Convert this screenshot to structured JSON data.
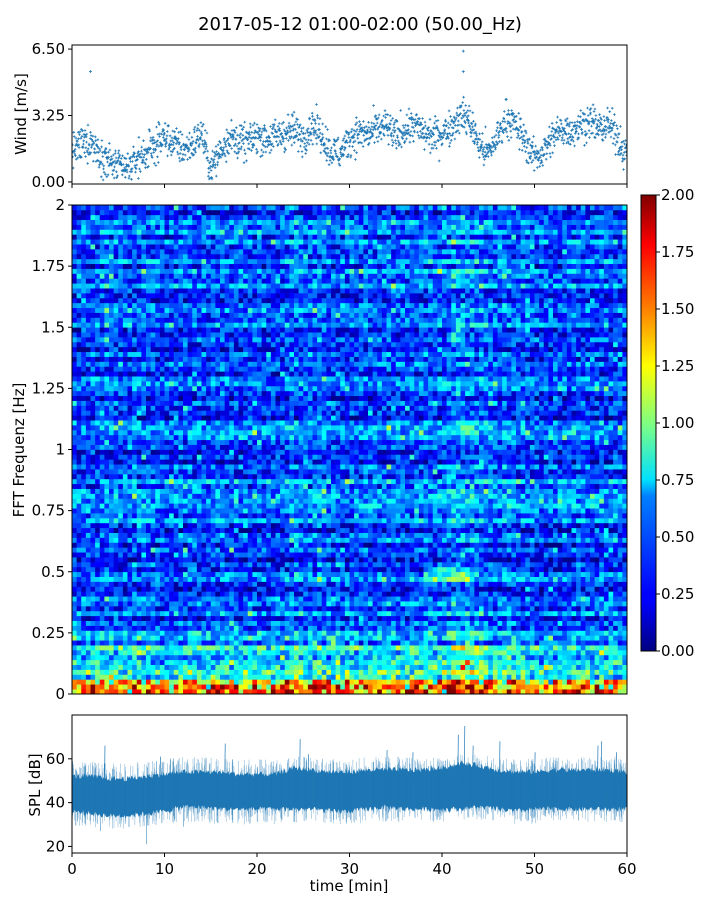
{
  "page": {
    "title": "2017-05-12 01:00-02:00 (50.00_Hz)"
  },
  "chart_data": [
    {
      "id": "wind",
      "type": "scatter",
      "title": "",
      "xlabel": "",
      "ylabel": "Wind [m/s]",
      "xlim": [
        0,
        60
      ],
      "ylim": [
        -0.1,
        6.7
      ],
      "yticks": [
        0.0,
        3.25,
        6.5
      ],
      "ytick_labels": [
        "0.00",
        "3.25",
        "6.50"
      ],
      "color": "#1f77b4",
      "marker": "+",
      "series": [
        {
          "x": [
            0,
            1,
            2,
            3,
            4,
            5,
            6,
            7,
            8,
            9,
            10,
            11,
            12,
            13,
            14,
            15,
            16,
            17,
            18,
            19,
            20,
            21,
            22,
            23,
            24,
            25,
            26,
            27,
            28,
            29,
            30,
            31,
            32,
            33,
            34,
            35,
            36,
            37,
            38,
            39,
            40,
            41,
            42,
            43,
            44,
            45,
            46,
            47,
            48,
            49,
            50,
            51,
            52,
            53,
            54,
            55,
            56,
            57,
            58,
            59,
            60
          ],
          "y": [
            1.5,
            1.8,
            2.0,
            1.4,
            1.0,
            0.7,
            0.6,
            1.1,
            1.4,
            1.8,
            2.2,
            1.9,
            1.6,
            1.8,
            2.4,
            0.6,
            1.5,
            2.2,
            2.0,
            1.9,
            2.3,
            2.1,
            2.2,
            2.4,
            2.5,
            2.2,
            2.8,
            2.3,
            1.5,
            1.4,
            2.1,
            2.4,
            2.3,
            2.6,
            2.7,
            2.2,
            2.6,
            2.8,
            2.4,
            2.2,
            2.4,
            2.7,
            3.3,
            3.0,
            1.8,
            1.4,
            2.2,
            3.2,
            2.7,
            2.0,
            1.2,
            1.5,
            2.2,
            2.6,
            2.5,
            2.8,
            3.0,
            2.6,
            2.8,
            2.2,
            1.2
          ]
        }
      ],
      "outliers": [
        {
          "x": 2.0,
          "y": 5.4
        },
        {
          "x": 42.3,
          "y": 6.4
        },
        {
          "x": 42.3,
          "y": 5.4
        }
      ]
    },
    {
      "id": "spectrogram",
      "type": "heatmap",
      "title": "",
      "xlabel": "",
      "ylabel": "FFT Frequenz [Hz]",
      "xlim": [
        0,
        60
      ],
      "ylim": [
        0,
        2
      ],
      "yticks": [
        0,
        0.25,
        0.5,
        0.75,
        1,
        1.25,
        1.5,
        1.75,
        2
      ],
      "ytick_labels": [
        "0",
        "0.25",
        "0.5",
        "0.75",
        "1",
        "1.25",
        "1.5",
        "1.75",
        "2"
      ],
      "colormap": "jet",
      "clim": [
        0,
        2
      ],
      "colorbar_ticks": [
        0.0,
        0.25,
        0.5,
        0.75,
        1.0,
        1.25,
        1.5,
        1.75,
        2.0
      ],
      "colorbar_labels": [
        "0.00",
        "0.25",
        "0.50",
        "0.75",
        "1.00",
        "1.25",
        "1.50",
        "1.75",
        "2.00"
      ],
      "n_time_bins": 120,
      "n_freq_bins": 100,
      "time_intensity": [
        0.95,
        0.95,
        1.0,
        1.05,
        1.1,
        1.1,
        1.0,
        1.1,
        1.15,
        1.0,
        0.95,
        1.0,
        1.05,
        1.05,
        1.0,
        1.0,
        1.05,
        1.05,
        1.0,
        1.0,
        1.05,
        1.0,
        1.0,
        1.05,
        1.2,
        1.15,
        1.1,
        1.15,
        1.1,
        1.0,
        1.05,
        1.05,
        1.05,
        1.05,
        1.1,
        1.05,
        1.05,
        1.1,
        1.1,
        1.05,
        1.15,
        1.25,
        1.4,
        1.35,
        1.3,
        1.15,
        1.1,
        1.15,
        1.1,
        1.05,
        1.0,
        1.0,
        1.0,
        1.0,
        1.05,
        1.05,
        1.05,
        1.05,
        1.05,
        1.05,
        1.0
      ]
    },
    {
      "id": "spl",
      "type": "area",
      "title": "",
      "xlabel": "time [min]",
      "ylabel": "SPL [dB]",
      "xlim": [
        0,
        60
      ],
      "ylim": [
        17,
        80
      ],
      "yticks": [
        20,
        40,
        60
      ],
      "ytick_labels": [
        "20",
        "40",
        "60"
      ],
      "xticks": [
        0,
        10,
        20,
        30,
        40,
        50,
        60
      ],
      "xtick_labels": [
        "0",
        "10",
        "20",
        "30",
        "40",
        "50",
        "60"
      ],
      "color": "#1f77b4",
      "series": [
        {
          "x": [
            0,
            2,
            4,
            6,
            8,
            10,
            12,
            14,
            16,
            18,
            20,
            22,
            24,
            26,
            28,
            30,
            32,
            34,
            36,
            38,
            40,
            42,
            44,
            46,
            48,
            50,
            52,
            54,
            56,
            58,
            60
          ],
          "mean": [
            44,
            44,
            43,
            43,
            44,
            45,
            46,
            46,
            45,
            45,
            45,
            45,
            46,
            46,
            45,
            45,
            46,
            46,
            46,
            46,
            46,
            47,
            47,
            46,
            45,
            45,
            46,
            46,
            46,
            46,
            46
          ],
          "low": [
            36,
            35,
            34,
            34,
            35,
            36,
            38,
            38,
            37,
            37,
            37,
            37,
            37,
            37,
            36,
            36,
            37,
            38,
            37,
            37,
            37,
            37,
            38,
            37,
            36,
            37,
            37,
            37,
            37,
            37,
            37
          ],
          "high": [
            52,
            52,
            51,
            51,
            52,
            53,
            54,
            54,
            54,
            53,
            53,
            53,
            56,
            55,
            54,
            54,
            55,
            55,
            55,
            55,
            56,
            58,
            57,
            55,
            54,
            54,
            55,
            55,
            55,
            55,
            54
          ]
        }
      ],
      "spikes": [
        {
          "x": 3.5,
          "y": 66
        },
        {
          "x": 9.5,
          "y": 61
        },
        {
          "x": 16.5,
          "y": 67
        },
        {
          "x": 24.6,
          "y": 69
        },
        {
          "x": 25.5,
          "y": 62
        },
        {
          "x": 34.0,
          "y": 64
        },
        {
          "x": 36.8,
          "y": 63
        },
        {
          "x": 41.7,
          "y": 71
        },
        {
          "x": 42.4,
          "y": 75
        },
        {
          "x": 43.3,
          "y": 66
        },
        {
          "x": 46.2,
          "y": 68
        },
        {
          "x": 50.0,
          "y": 63
        },
        {
          "x": 56.8,
          "y": 66
        },
        {
          "x": 57.2,
          "y": 68
        },
        {
          "x": 58.8,
          "y": 63
        }
      ],
      "dips": [
        {
          "x": 8.0,
          "y": 21
        },
        {
          "x": 3.0,
          "y": 27
        },
        {
          "x": 12.0,
          "y": 29
        }
      ]
    }
  ]
}
